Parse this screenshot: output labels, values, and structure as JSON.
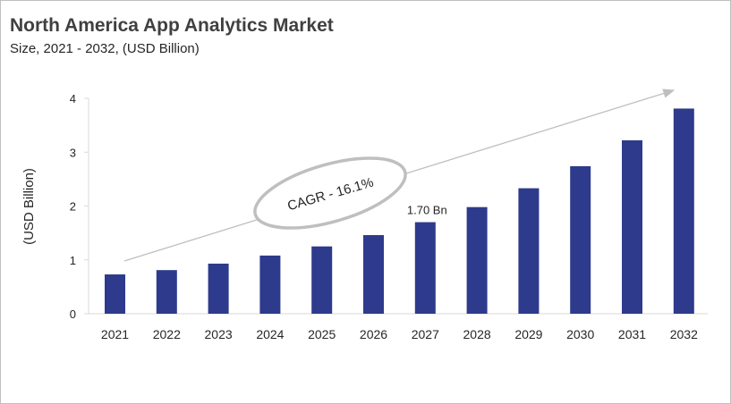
{
  "chart_data": {
    "type": "bar",
    "title": "North America App Analytics Market",
    "subtitle": "Size, 2021 - 2032, (USD Billion)",
    "xlabel": "",
    "ylabel": "(USD Billion)",
    "categories": [
      "2021",
      "2022",
      "2023",
      "2024",
      "2025",
      "2026",
      "2027",
      "2028",
      "2029",
      "2030",
      "2031",
      "2032"
    ],
    "values": [
      0.73,
      0.81,
      0.93,
      1.08,
      1.25,
      1.46,
      1.7,
      1.98,
      2.33,
      2.74,
      3.22,
      3.81
    ],
    "ylim": [
      0,
      4
    ],
    "yticks": [
      "0",
      "1",
      "2",
      "3",
      "4"
    ],
    "grid": false,
    "bar_color": "#2e3a8c",
    "annotations": {
      "data_label": {
        "category": "2027",
        "text": "1.70 Bn"
      },
      "cagr": "CAGR - 16.1%"
    }
  }
}
